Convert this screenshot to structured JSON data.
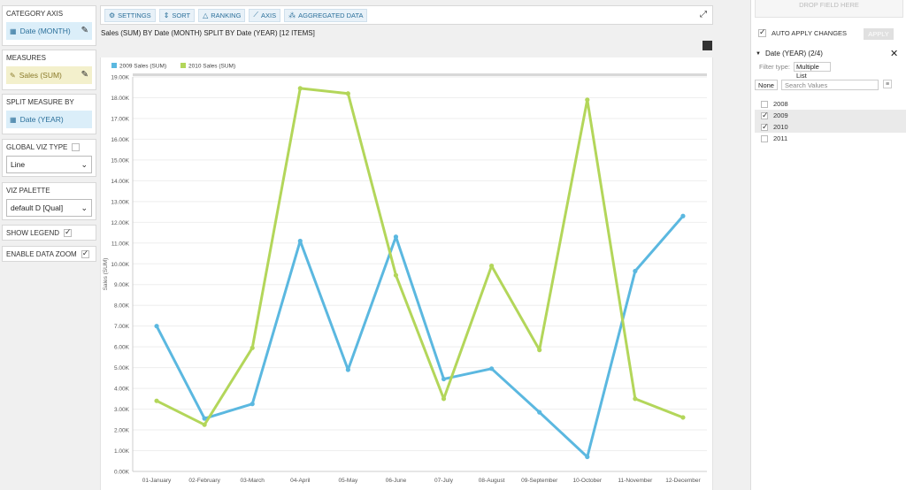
{
  "left_panel": {
    "category_axis": {
      "header": "CATEGORY AXIS",
      "value": "Date (MONTH)"
    },
    "measures": {
      "header": "MEASURES",
      "value": "Sales (SUM)"
    },
    "split_measure_by": {
      "header": "SPLIT MEASURE BY",
      "value": "Date (YEAR)"
    },
    "global_viz_type": {
      "header": "GLOBAL VIZ TYPE",
      "value": "Line"
    },
    "viz_palette": {
      "header": "VIZ PALETTE",
      "value": "default D [Qual]"
    },
    "show_legend": {
      "label": "SHOW LEGEND",
      "checked": true
    },
    "enable_data_zoom": {
      "label": "ENABLE DATA ZOOM",
      "checked": true
    }
  },
  "toolbar": {
    "settings": "SETTINGS",
    "sort": "SORT",
    "ranking": "RANKING",
    "axis": "AXIS",
    "aggregated": "AGGREGATED DATA"
  },
  "chart_title": "Sales (SUM) BY Date (MONTH) SPLIT BY Date (YEAR) [12 ITEMS]",
  "colors": {
    "series_2009": "#5bb8e0",
    "series_2010": "#b3d65a",
    "accent": "#2a6f9a"
  },
  "chart_data": {
    "type": "line",
    "ylabel": "Sales (SUM)",
    "ylim": [
      0,
      19000
    ],
    "ytick_step": 1000,
    "legend_position": "top-left",
    "grid": true,
    "categories": [
      "01-January",
      "02-February",
      "03-March",
      "04-April",
      "05-May",
      "06-June",
      "07-July",
      "08-August",
      "09-September",
      "10-October",
      "11-November",
      "12-December"
    ],
    "series": [
      {
        "name": "2009 Sales (SUM)",
        "values": [
          7000,
          2550,
          3250,
          11100,
          4900,
          11300,
          4450,
          4950,
          2850,
          700,
          9650,
          12300
        ]
      },
      {
        "name": "2010 Sales (SUM)",
        "values": [
          3400,
          2250,
          5950,
          18450,
          18200,
          9450,
          3500,
          9900,
          5850,
          17900,
          3500,
          2600
        ]
      }
    ]
  },
  "right_panel": {
    "drop_field": "DROP FIELD HERE",
    "auto_apply": "AUTO APPLY CHANGES",
    "apply": "APPLY",
    "filter_title": "Date (YEAR) (2/4)",
    "filter_type_label": "Filter type:",
    "filter_type_value": "Multiple List",
    "none_btn": "None",
    "search_placeholder": "Search Values",
    "items": [
      {
        "label": "2008",
        "checked": false
      },
      {
        "label": "2009",
        "checked": true
      },
      {
        "label": "2010",
        "checked": true
      },
      {
        "label": "2011",
        "checked": false
      }
    ]
  }
}
